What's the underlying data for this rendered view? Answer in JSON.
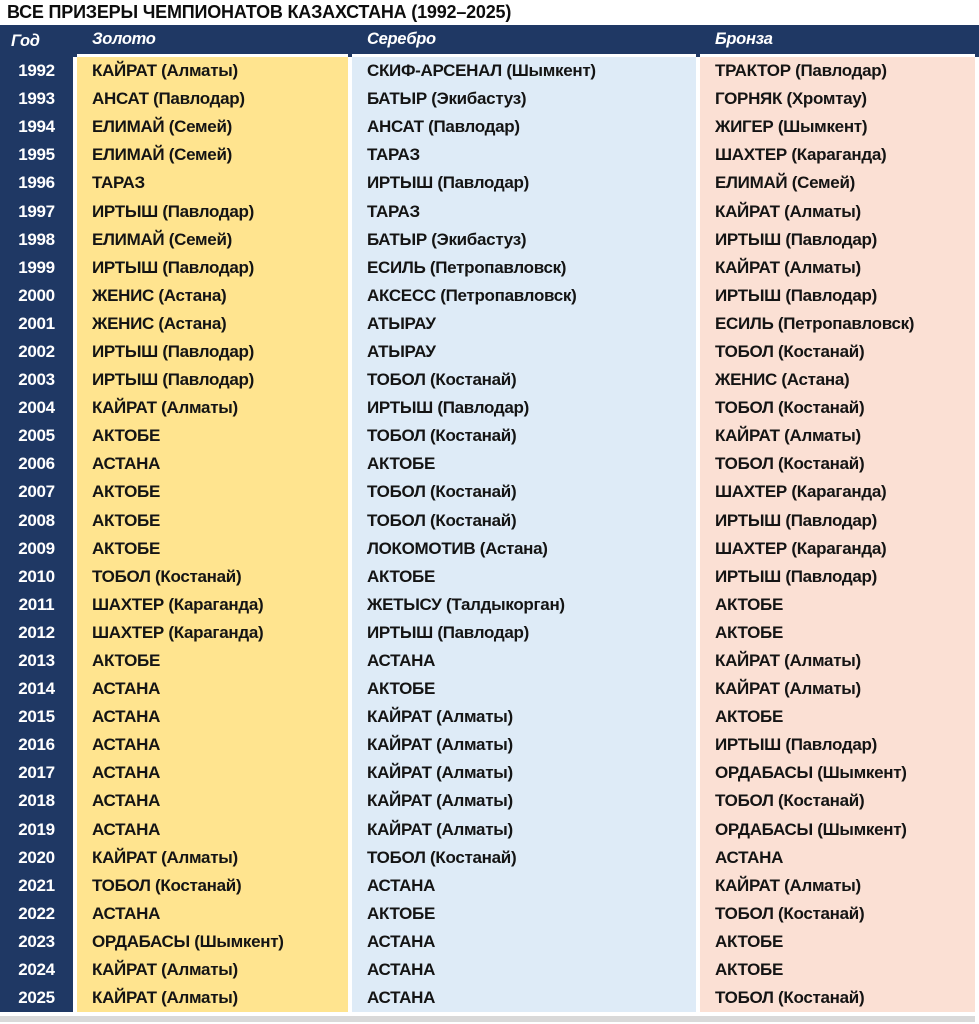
{
  "title": "ВСЕ ПРИЗЕРЫ ЧЕМПИОНАТОВ КАЗАХСТАНА (1992–2025)",
  "colors": {
    "header_bg": "#1F3864",
    "year_column_bg": "#1F3864",
    "gold_column_bg": "#FFE48F",
    "silver_column_bg": "#DEEBF7",
    "bronze_column_bg": "#FBE0D4",
    "header_text": "#FFFFFF",
    "year_text": "#FFFFFF",
    "cell_text": "#141414",
    "bottom_bar": "#D9D9D9"
  },
  "chart_data": {
    "type": "table",
    "title": "ВСЕ ПРИЗЕРЫ ЧЕМПИОНАТОВ КАЗАХСТАНА (1992–2025)",
    "columns": [
      "Год",
      "Золото",
      "Серебро",
      "Бронза"
    ],
    "rows": [
      [
        "1992",
        "КАЙРАТ (Алматы)",
        "СКИФ-АРСЕНАЛ (Шымкент)",
        "ТРАКТОР (Павлодар)"
      ],
      [
        "1993",
        "АНСАТ (Павлодар)",
        "БАТЫР (Экибастуз)",
        "ГОРНЯК (Хромтау)"
      ],
      [
        "1994",
        "ЕЛИМАЙ (Семей)",
        "АНСАТ (Павлодар)",
        "ЖИГЕР (Шымкент)"
      ],
      [
        "1995",
        "ЕЛИМАЙ (Семей)",
        "ТАРАЗ",
        "ШАХТЕР (Караганда)"
      ],
      [
        "1996",
        "ТАРАЗ",
        "ИРТЫШ (Павлодар)",
        "ЕЛИМАЙ (Семей)"
      ],
      [
        "1997",
        "ИРТЫШ (Павлодар)",
        "ТАРАЗ",
        "КАЙРАТ (Алматы)"
      ],
      [
        "1998",
        "ЕЛИМАЙ (Семей)",
        "БАТЫР (Экибастуз)",
        "ИРТЫШ (Павлодар)"
      ],
      [
        "1999",
        "ИРТЫШ (Павлодар)",
        "ЕСИЛЬ (Петропавловск)",
        "КАЙРАТ (Алматы)"
      ],
      [
        "2000",
        "ЖЕНИС (Астана)",
        "АКСЕСС (Петропавловск)",
        "ИРТЫШ (Павлодар)"
      ],
      [
        "2001",
        "ЖЕНИС (Астана)",
        "АТЫРАУ",
        "ЕСИЛЬ (Петропавловск)"
      ],
      [
        "2002",
        "ИРТЫШ (Павлодар)",
        "АТЫРАУ",
        "ТОБОЛ (Костанай)"
      ],
      [
        "2003",
        "ИРТЫШ (Павлодар)",
        "ТОБОЛ (Костанай)",
        "ЖЕНИС (Астана)"
      ],
      [
        "2004",
        "КАЙРАТ (Алматы)",
        "ИРТЫШ (Павлодар)",
        "ТОБОЛ (Костанай)"
      ],
      [
        "2005",
        "АКТОБЕ",
        "ТОБОЛ (Костанай)",
        "КАЙРАТ (Алматы)"
      ],
      [
        "2006",
        "АСТАНА",
        "АКТОБЕ",
        "ТОБОЛ (Костанай)"
      ],
      [
        "2007",
        "АКТОБЕ",
        "ТОБОЛ (Костанай)",
        "ШАХТЕР (Караганда)"
      ],
      [
        "2008",
        "АКТОБЕ",
        "ТОБОЛ (Костанай)",
        "ИРТЫШ (Павлодар)"
      ],
      [
        "2009",
        "АКТОБЕ",
        "ЛОКОМОТИВ (Астана)",
        "ШАХТЕР (Караганда)"
      ],
      [
        "2010",
        "ТОБОЛ (Костанай)",
        "АКТОБЕ",
        "ИРТЫШ (Павлодар)"
      ],
      [
        "2011",
        "ШАХТЕР (Караганда)",
        "ЖЕТЫСУ (Талдыкорган)",
        "АКТОБЕ"
      ],
      [
        "2012",
        "ШАХТЕР (Караганда)",
        "ИРТЫШ (Павлодар)",
        "АКТОБЕ"
      ],
      [
        "2013",
        "АКТОБЕ",
        "АСТАНА",
        "КАЙРАТ (Алматы)"
      ],
      [
        "2014",
        "АСТАНА",
        "АКТОБЕ",
        "КАЙРАТ (Алматы)"
      ],
      [
        "2015",
        "АСТАНА",
        "КАЙРАТ (Алматы)",
        "АКТОБЕ"
      ],
      [
        "2016",
        "АСТАНА",
        "КАЙРАТ (Алматы)",
        "ИРТЫШ (Павлодар)"
      ],
      [
        "2017",
        "АСТАНА",
        "КАЙРАТ (Алматы)",
        "ОРДАБАСЫ (Шымкент)"
      ],
      [
        "2018",
        "АСТАНА",
        "КАЙРАТ (Алматы)",
        "ТОБОЛ (Костанай)"
      ],
      [
        "2019",
        "АСТАНА",
        "КАЙРАТ (Алматы)",
        "ОРДАБАСЫ (Шымкент)"
      ],
      [
        "2020",
        "КАЙРАТ (Алматы)",
        "ТОБОЛ (Костанай)",
        "АСТАНА"
      ],
      [
        "2021",
        "ТОБОЛ (Костанай)",
        "АСТАНА",
        "КАЙРАТ (Алматы)"
      ],
      [
        "2022",
        "АСТАНА",
        "АКТОБЕ",
        "ТОБОЛ (Костанай)"
      ],
      [
        "2023",
        "ОРДАБАСЫ (Шымкент)",
        "АСТАНА",
        "АКТОБЕ"
      ],
      [
        "2024",
        "КАЙРАТ (Алматы)",
        "АСТАНА",
        "АКТОБЕ"
      ],
      [
        "2025",
        "КАЙРАТ (Алматы)",
        "АСТАНА",
        "ТОБОЛ (Костанай)"
      ]
    ]
  }
}
